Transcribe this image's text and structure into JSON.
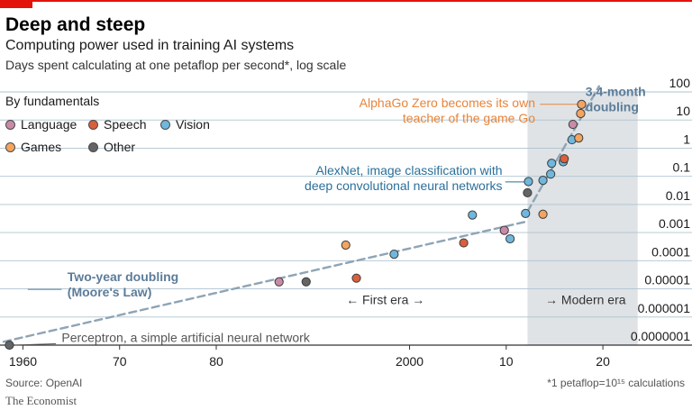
{
  "header": {
    "title": "Deep and steep",
    "subtitle": "Computing power used in training AI systems",
    "note": "Days spent calculating at one petaflop per second*, log scale"
  },
  "legend": {
    "title": "By fundamentals",
    "items": [
      {
        "label": "Language",
        "color": "#c98aa8"
      },
      {
        "label": "Speech",
        "color": "#d9603b"
      },
      {
        "label": "Vision",
        "color": "#6fb7dd"
      },
      {
        "label": "Games",
        "color": "#f4a460"
      },
      {
        "label": "Other",
        "color": "#646464"
      }
    ]
  },
  "footer": {
    "source": "Source: OpenAI",
    "footnote": "*1 petaflop=10¹⁵ calculations",
    "brand": "The Economist"
  },
  "chart_data": {
    "type": "scatter",
    "yscale": "log",
    "xlim": [
      1958,
      2024
    ],
    "ylim_exp": [
      -7,
      2
    ],
    "x_ticks": [
      {
        "year": 1960,
        "label": "1960"
      },
      {
        "year": 1970,
        "label": "70"
      },
      {
        "year": 1980,
        "label": "80"
      },
      {
        "year": 2000,
        "label": "2000"
      },
      {
        "year": 2010,
        "label": "10"
      },
      {
        "year": 2020,
        "label": "20"
      }
    ],
    "y_ticks": [
      {
        "exp": 2,
        "label": "100"
      },
      {
        "exp": 1,
        "label": "10"
      },
      {
        "exp": 0,
        "label": "1"
      },
      {
        "exp": -1,
        "label": "0.1"
      },
      {
        "exp": -2,
        "label": "0.01"
      },
      {
        "exp": -3,
        "label": "0.001"
      },
      {
        "exp": -4,
        "label": "0.0001"
      },
      {
        "exp": -5,
        "label": "0.00001"
      },
      {
        "exp": -6,
        "label": "0.000001"
      },
      {
        "exp": -7,
        "label": "0.0000001"
      }
    ],
    "modern_era_start": 2012.2,
    "modern_era_end": 2023.6,
    "eras": [
      {
        "label": "← First era →",
        "x": 1997.5,
        "exp": -5.55
      },
      {
        "label": "→ Modern era",
        "x": 2018.2,
        "exp": -5.55
      }
    ],
    "trend_lines": [
      {
        "name": "Two-year doubling",
        "x0": 1958,
        "exp0": -6.88,
        "x1": 2012.2,
        "exp1": -2.6
      },
      {
        "name": "3.4-month doubling",
        "x0": 2012.2,
        "exp0": -2.25,
        "x1": 2019.6,
        "exp1": 2.2
      }
    ],
    "points": [
      {
        "year": 1958.6,
        "value": 1e-07,
        "cat": "Other"
      },
      {
        "year": 1986.5,
        "value": 1.78e-05,
        "cat": "Language"
      },
      {
        "year": 1989.3,
        "value": 1.78e-05,
        "cat": "Other"
      },
      {
        "year": 1993.4,
        "value": 0.00036,
        "cat": "Games"
      },
      {
        "year": 1994.5,
        "value": 2.4e-05,
        "cat": "Speech"
      },
      {
        "year": 1998.4,
        "value": 0.00017,
        "cat": "Vision"
      },
      {
        "year": 2005.6,
        "value": 0.00043,
        "cat": "Speech"
      },
      {
        "year": 2006.5,
        "value": 0.0042,
        "cat": "Vision"
      },
      {
        "year": 2009.8,
        "value": 0.0012,
        "cat": "Language"
      },
      {
        "year": 2010.4,
        "value": 0.0006,
        "cat": "Vision"
      },
      {
        "year": 2012.0,
        "value": 0.0048,
        "cat": "Vision"
      },
      {
        "year": 2012.2,
        "value": 0.026,
        "cat": "Other"
      },
      {
        "year": 2012.3,
        "value": 0.065,
        "cat": "Vision"
      },
      {
        "year": 2013.8,
        "value": 0.0045,
        "cat": "Games"
      },
      {
        "year": 2013.8,
        "value": 0.072,
        "cat": "Vision"
      },
      {
        "year": 2014.6,
        "value": 0.12,
        "cat": "Vision"
      },
      {
        "year": 2014.7,
        "value": 0.29,
        "cat": "Vision"
      },
      {
        "year": 2015.9,
        "value": 0.33,
        "cat": "Vision"
      },
      {
        "year": 2016.0,
        "value": 0.42,
        "cat": "Speech"
      },
      {
        "year": 2016.8,
        "value": 2.0,
        "cat": "Vision"
      },
      {
        "year": 2016.9,
        "value": 7.0,
        "cat": "Language"
      },
      {
        "year": 2017.5,
        "value": 2.3,
        "cat": "Games"
      },
      {
        "year": 2017.7,
        "value": 17,
        "cat": "Games"
      },
      {
        "year": 2017.8,
        "value": 36,
        "cat": "Games"
      }
    ],
    "annotations": [
      {
        "lines": [
          "3.4-month",
          "doubling"
        ],
        "x": 2018.2,
        "exp": 1.85,
        "anchor": "start",
        "color": "#5b7c99",
        "bold": true
      },
      {
        "lines": [
          "AlphaGo Zero becomes its own",
          "teacher of the game Go"
        ],
        "x": 2013.0,
        "exp": 1.45,
        "anchor": "end",
        "color": "#e8843a",
        "bold": false,
        "leader": {
          "x0": 2013.5,
          "exp0": 1.56,
          "x1": 2017.6,
          "exp1": 1.56
        }
      },
      {
        "lines": [
          "AlexNet, image classification with",
          "deep convolutional neural networks"
        ],
        "x": 2009.6,
        "exp": -0.95,
        "anchor": "end",
        "color": "#2a6f9a",
        "bold": false,
        "leader": {
          "x0": 2009.9,
          "exp0": -1.2,
          "x1": 2012.1,
          "exp1": -1.2
        }
      },
      {
        "lines": [
          "Two-year doubling",
          "(Moore's Law)"
        ],
        "x": 1964.6,
        "exp": -4.72,
        "anchor": "start",
        "color": "#5b7c99",
        "bold": true,
        "leader": {
          "x0": 1960.5,
          "exp0": -5.02,
          "x1": 1964.0,
          "exp1": -5.02
        }
      },
      {
        "lines": [
          "Perceptron, a simple artificial neural network"
        ],
        "x": 1964.0,
        "exp": -6.88,
        "anchor": "start",
        "color": "#555555",
        "bold": false,
        "leader": {
          "x0": 1959.2,
          "exp0": -7.0,
          "x1": 1963.4,
          "exp1": -6.95
        }
      }
    ]
  }
}
